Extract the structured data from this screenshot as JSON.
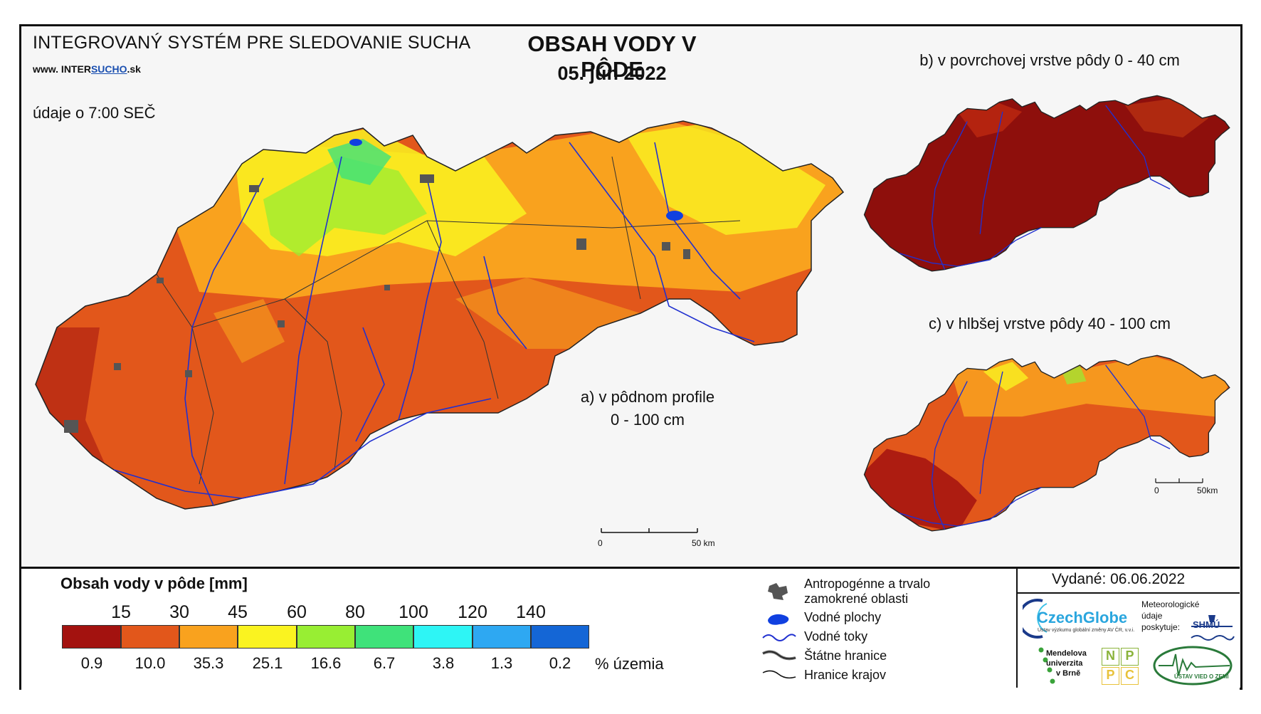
{
  "header": {
    "system_title": "INTEGROVANÝ SYSTÉM PRE SLEDOVANIE SUCHA",
    "website_prefix": "www. INTER",
    "website_underlined": "SUCHO",
    "website_suffix": ".sk",
    "time_note": "údaje o 7:00 SEČ",
    "map_title": "OBSAH VODY V PÔDE",
    "date": "05. jún 2022"
  },
  "panels": {
    "a_label_line1": "a) v pôdnom profile",
    "a_label_line2": "0 - 100 cm",
    "b_label": "b) v povrchovej vrstve pôdy 0 - 40 cm",
    "c_label": "c) v hlbšej vrstve pôdy 40 - 100 cm"
  },
  "scale_bars": {
    "main": {
      "zero": "0",
      "end": "50 km"
    },
    "small": {
      "zero": "0",
      "end": "50km"
    }
  },
  "legend": {
    "title": "Obsah vody v pôde  [mm]",
    "thresholds": [
      "15",
      "30",
      "45",
      "60",
      "80",
      "100",
      "120",
      "140"
    ],
    "classes": [
      {
        "color": "#a3120f",
        "percent": "0.9"
      },
      {
        "color": "#e2571b",
        "percent": "10.0"
      },
      {
        "color": "#f9a21e",
        "percent": "35.3"
      },
      {
        "color": "#faf320",
        "percent": "25.1"
      },
      {
        "color": "#98ee33",
        "percent": "16.6"
      },
      {
        "color": "#3fe27a",
        "percent": "6.7"
      },
      {
        "color": "#2ef5f5",
        "percent": "3.8"
      },
      {
        "color": "#2ea8f2",
        "percent": "1.3"
      },
      {
        "color": "#1466d6",
        "percent": "0.2"
      }
    ],
    "percent_unit": "% územia"
  },
  "symbols": {
    "anthropogenic_line1": "Antropogénne a trvalo",
    "anthropogenic_line2": "zamokrené oblasti",
    "water_bodies": "Vodné plochy",
    "water_streams": "Vodné toky",
    "state_border": "Štátne hranice",
    "region_border": "Hranice krajov"
  },
  "footer": {
    "issued": "Vydané: 06.06.2022",
    "czechglobe": "CzechGlobe",
    "czechglobe_sub": "Ústav výzkumu globální změny AV ČR, v.v.i.",
    "meteo_line1": "Meteorologické",
    "meteo_line2": "údaje",
    "meteo_line3": "poskytuje:",
    "shmu": "SHMÚ",
    "mendel_line1": "Mendelova",
    "mendel_line2": "univerzita",
    "mendel_line3": "v Brně",
    "nppc": [
      "N",
      "P",
      "P",
      "C"
    ],
    "uvz": "ÚSTAV VIED O ZEMI"
  },
  "colors": {
    "dark_red": "#a3120f",
    "orange_red": "#e2571b",
    "orange": "#f9a21e",
    "yellow": "#faf320",
    "light_green": "#98ee33",
    "river_blue": "#2030d0",
    "anthro_gray": "#555555"
  }
}
